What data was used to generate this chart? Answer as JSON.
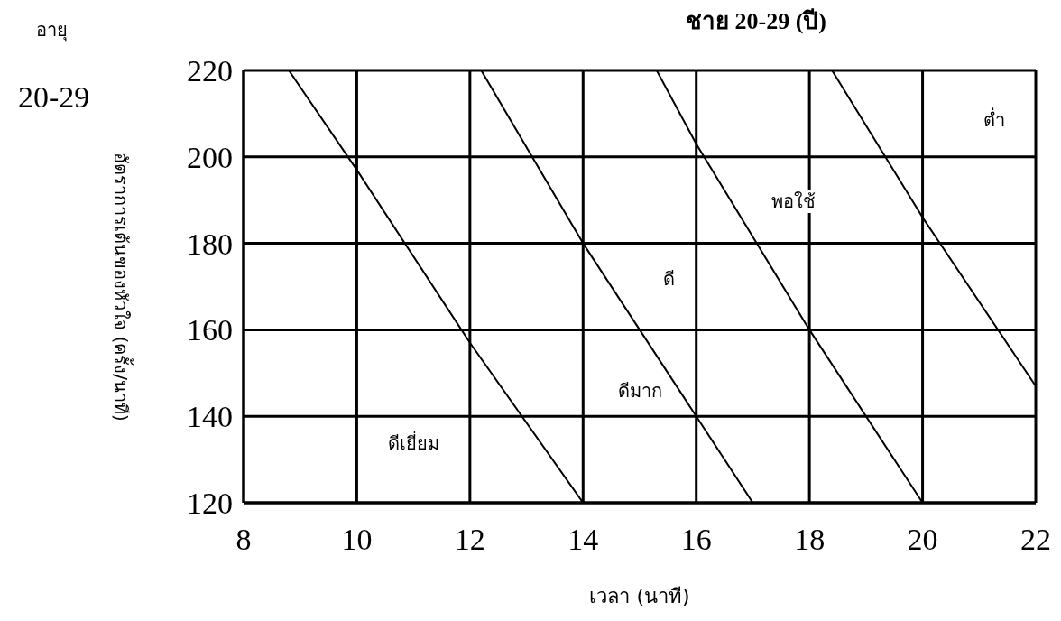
{
  "chart_data": {
    "type": "line",
    "title": "ชาย 20-29 (ปี)",
    "xlabel": "เวลา (นาที)",
    "ylabel": "อัตราการเต้นของหัวใจ (ครั้ง/นาที)",
    "series": [
      {
        "color": "#000000",
        "x": [
          8.8,
          10,
          12,
          14
        ],
        "values": [
          220,
          197,
          157,
          120
        ]
      },
      {
        "color": "#000000",
        "x": [
          12.2,
          14,
          16,
          17
        ],
        "values": [
          220,
          180,
          140,
          120
        ]
      },
      {
        "color": "#000000",
        "x": [
          15.3,
          16,
          18,
          20
        ],
        "values": [
          220,
          203,
          160,
          120
        ]
      },
      {
        "color": "#000000",
        "x": [
          18.4,
          20,
          22
        ],
        "values": [
          220,
          186,
          147
        ]
      }
    ],
    "xlim": [
      8,
      22
    ],
    "xticks": [
      8,
      10,
      12,
      14,
      16,
      18,
      20,
      22
    ],
    "ylim": [
      120,
      220
    ],
    "yticks": [
      120,
      140,
      160,
      180,
      200,
      220
    ],
    "grid": true,
    "legend": false,
    "marker": "none",
    "line_style": "solid",
    "annotations": [
      "อายุ",
      "20-29",
      "ต่ำ",
      "พอใช้",
      "ดี",
      "ดีมาก",
      "ดีเยี่ยม"
    ]
  }
}
